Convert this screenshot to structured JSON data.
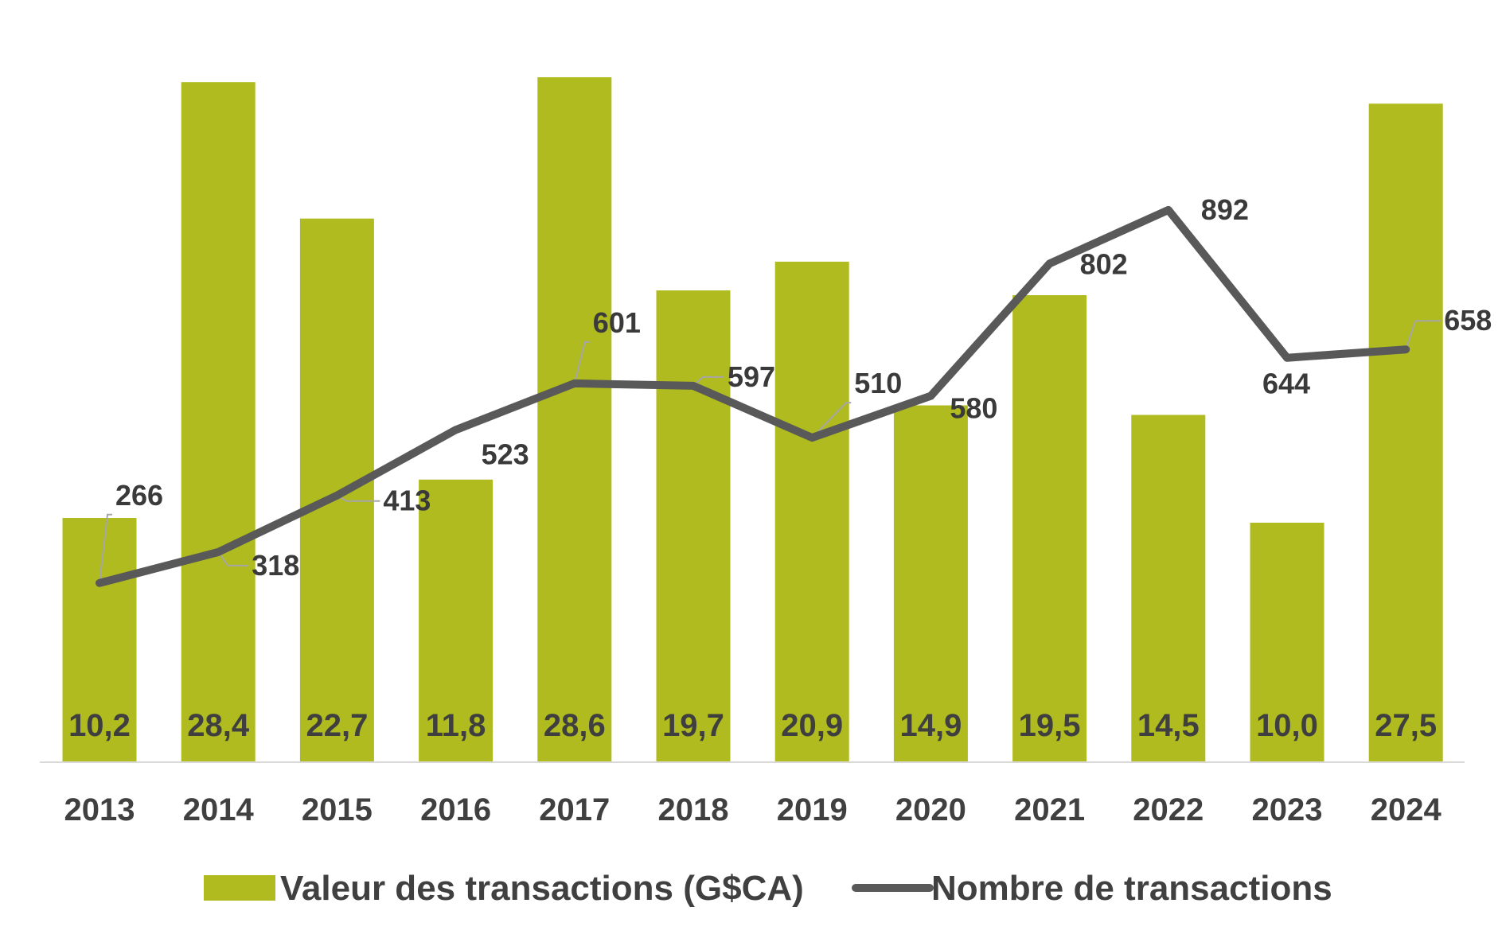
{
  "chart_data": {
    "type": "bar",
    "categories": [
      "2013",
      "2014",
      "2015",
      "2016",
      "2017",
      "2018",
      "2019",
      "2020",
      "2021",
      "2022",
      "2023",
      "2024"
    ],
    "series": [
      {
        "name": "Valeur des transactions (G$CA)",
        "type": "bar",
        "color": "#b0bb1f",
        "values": [
          10.2,
          28.4,
          22.7,
          11.8,
          28.6,
          19.7,
          20.9,
          14.9,
          19.5,
          14.5,
          10.0,
          27.5
        ],
        "labels": [
          "10,2",
          "28,4",
          "22,7",
          "11,8",
          "28,6",
          "19,7",
          "20,9",
          "14,9",
          "19,5",
          "14,5",
          "10,0",
          "27,5"
        ]
      },
      {
        "name": "Nombre de transactions",
        "type": "line",
        "color": "#595959",
        "values": [
          266,
          318,
          413,
          523,
          601,
          597,
          510,
          580,
          802,
          892,
          644,
          658
        ],
        "labels": [
          "266",
          "318",
          "413",
          "523",
          "601",
          "597",
          "510",
          "580",
          "802",
          "892",
          "644",
          "658"
        ]
      }
    ],
    "title": "",
    "xlabel": "",
    "ylabel": "",
    "grid": false,
    "legend": "bottom"
  }
}
